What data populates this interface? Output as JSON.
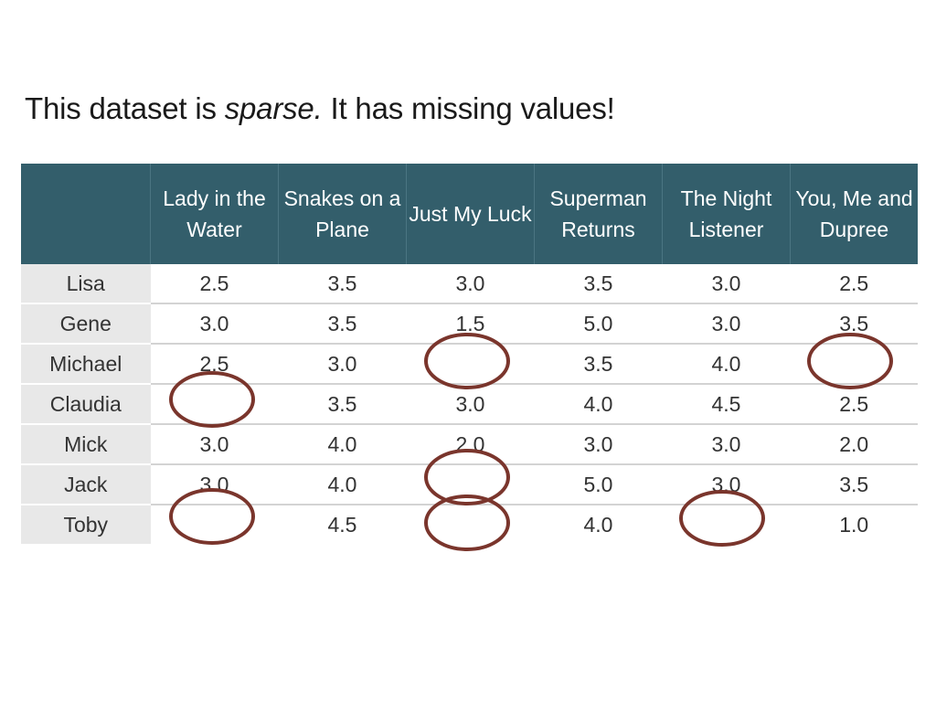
{
  "slide": {
    "title_prefix": "This dataset is ",
    "title_emphasis": "sparse.",
    "title_suffix": " It has missing values!"
  },
  "table": {
    "columns": [
      "Lady in the Water",
      "Snakes on a Plane",
      "Just My Luck",
      "Superman Returns",
      "The Night Listener",
      "You, Me and Dupree"
    ],
    "rows": [
      {
        "user": "Lisa",
        "ratings": [
          "2.5",
          "3.5",
          "3.0",
          "3.5",
          "3.0",
          "2.5"
        ]
      },
      {
        "user": "Gene",
        "ratings": [
          "3.0",
          "3.5",
          "1.5",
          "5.0",
          "3.0",
          "3.5"
        ]
      },
      {
        "user": "Michael",
        "ratings": [
          "2.5",
          "3.0",
          "",
          "3.5",
          "4.0",
          ""
        ]
      },
      {
        "user": "Claudia",
        "ratings": [
          "",
          "3.5",
          "3.0",
          "4.0",
          "4.5",
          "2.5"
        ]
      },
      {
        "user": "Mick",
        "ratings": [
          "3.0",
          "4.0",
          "2.0",
          "3.0",
          "3.0",
          "2.0"
        ]
      },
      {
        "user": "Jack",
        "ratings": [
          "3.0",
          "4.0",
          "",
          "5.0",
          "3.0",
          "3.5"
        ]
      },
      {
        "user": "Toby",
        "ratings": [
          "",
          "4.5",
          "",
          "4.0",
          "",
          "1.0"
        ]
      }
    ]
  },
  "colors": {
    "header_bg": "#335e6b",
    "user_col_bg": "#e8e8e8",
    "missing_circle": "#7a352c"
  }
}
